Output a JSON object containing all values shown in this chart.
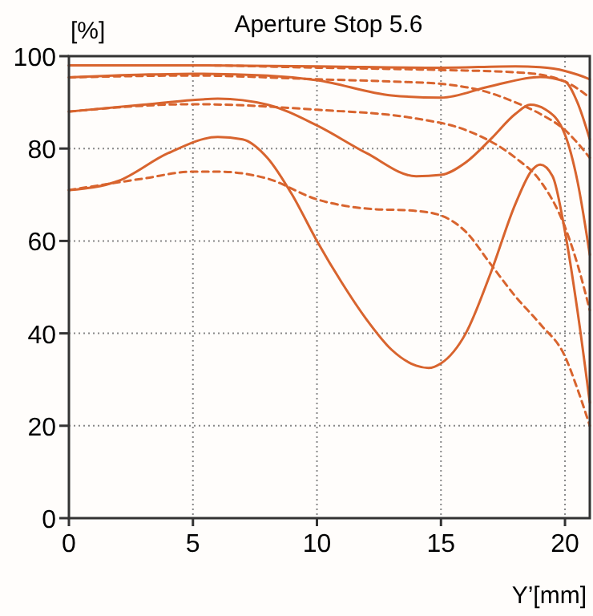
{
  "chart_data": {
    "type": "line",
    "title": "Aperture Stop 5.6",
    "xlabel": "Y’[mm]",
    "ylabel": "[%]",
    "xlim": [
      0,
      21
    ],
    "xticks": [
      0,
      5,
      10,
      15,
      20
    ],
    "ylim": [
      0,
      100
    ],
    "yticks": [
      0,
      20,
      40,
      60,
      80,
      100
    ],
    "grid": true,
    "marker": "none",
    "series": [
      {
        "color": "#d8642e",
        "line_style": "solid",
        "x": [
          0,
          5,
          10,
          15,
          18,
          19,
          20,
          20.5,
          21
        ],
        "values": [
          98,
          98,
          97.8,
          97.5,
          97.8,
          97.6,
          96.8,
          96,
          95
        ]
      },
      {
        "color": "#d8642e",
        "line_style": "dashed",
        "x": [
          0,
          5,
          10,
          15,
          18,
          19,
          20,
          20.5,
          21
        ],
        "values": [
          98,
          98,
          97.5,
          97,
          96.5,
          96,
          94.5,
          93,
          91
        ]
      },
      {
        "color": "#d8642e",
        "line_style": "solid",
        "x": [
          0,
          3,
          5,
          8,
          10,
          13,
          15,
          17,
          19,
          20,
          20.5,
          21
        ],
        "values": [
          95.4,
          96,
          96.2,
          95.8,
          94.8,
          91.5,
          91,
          93.5,
          95.5,
          94.5,
          90,
          82
        ]
      },
      {
        "color": "#d8642e",
        "line_style": "dashed",
        "x": [
          0,
          5,
          10,
          13,
          15,
          17,
          18,
          19,
          20,
          21
        ],
        "values": [
          95.4,
          95.8,
          95,
          94.5,
          94,
          92,
          90,
          87.5,
          84,
          78
        ]
      },
      {
        "color": "#d8642e",
        "line_style": "solid",
        "x": [
          0,
          3,
          5,
          6,
          8,
          10,
          12,
          14,
          15,
          16,
          17,
          18,
          18.6,
          19.2,
          20,
          20.5,
          21
        ],
        "values": [
          88,
          89.5,
          90.5,
          90.8,
          89.5,
          85,
          79,
          74,
          74.3,
          77,
          82,
          87.5,
          89.5,
          88.5,
          83,
          73,
          57
        ]
      },
      {
        "color": "#d8642e",
        "line_style": "dashed",
        "x": [
          0,
          5,
          10,
          14,
          16,
          18,
          19,
          20,
          20.5,
          21
        ],
        "values": [
          88,
          89.6,
          88.4,
          86.5,
          84,
          78,
          73,
          63,
          55,
          45
        ]
      },
      {
        "color": "#d8642e",
        "line_style": "solid",
        "x": [
          0,
          2,
          4,
          6,
          7,
          8,
          9,
          10,
          11,
          12,
          13,
          14,
          14.5,
          15,
          16,
          17,
          18,
          18.7,
          19,
          19.5,
          20,
          20.5,
          21
        ],
        "values": [
          71,
          73,
          79,
          82.5,
          82,
          78,
          70,
          60,
          51,
          43,
          36.5,
          33,
          32.5,
          33.5,
          40,
          53,
          68,
          75.5,
          76.5,
          74,
          62,
          45,
          25
        ]
      },
      {
        "color": "#d8642e",
        "line_style": "dashed",
        "x": [
          0,
          3,
          5,
          6,
          8,
          10,
          12,
          14,
          15,
          16,
          17,
          18,
          19,
          20,
          20.5,
          21
        ],
        "values": [
          71,
          73.5,
          75,
          75,
          73.5,
          69,
          67,
          66.5,
          65.5,
          62,
          55,
          48,
          42,
          35,
          28,
          20
        ]
      }
    ]
  }
}
